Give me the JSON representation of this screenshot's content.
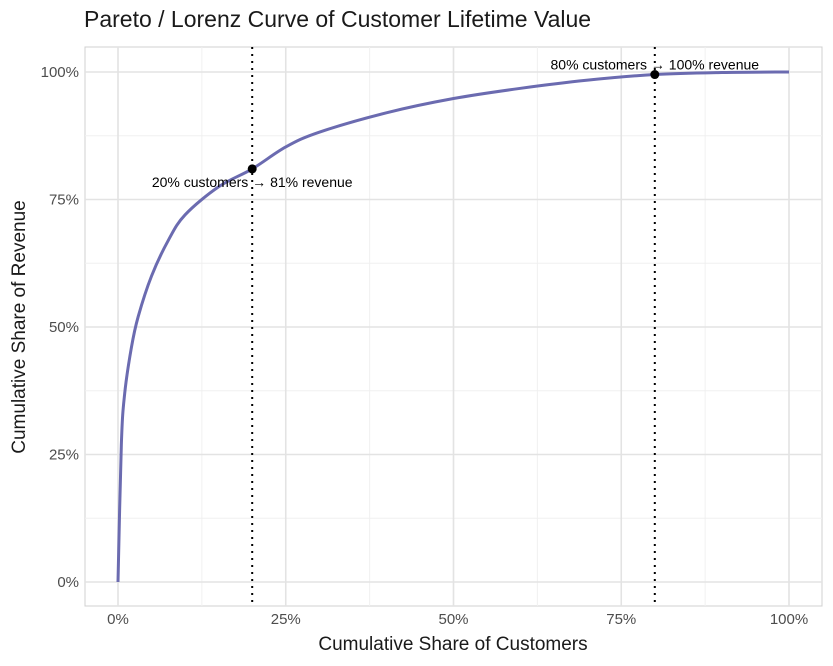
{
  "chart_data": {
    "type": "line",
    "title": "Pareto / Lorenz Curve of Customer Lifetime Value",
    "xlabel": "Cumulative Share of Customers",
    "ylabel": "Cumulative Share of Revenue",
    "xlim": [
      0,
      1
    ],
    "ylim": [
      0,
      1
    ],
    "x_ticks": [
      0,
      0.25,
      0.5,
      0.75,
      1.0
    ],
    "y_ticks": [
      0,
      0.25,
      0.5,
      0.75,
      1.0
    ],
    "x_tick_labels": [
      "0%",
      "25%",
      "50%",
      "75%",
      "100%"
    ],
    "y_tick_labels": [
      "0%",
      "25%",
      "50%",
      "75%",
      "100%"
    ],
    "grid": true,
    "series": [
      {
        "color": "#6b6bb0",
        "x": [
          0.0,
          0.005,
          0.01,
          0.02,
          0.03,
          0.05,
          0.075,
          0.1,
          0.15,
          0.2,
          0.25,
          0.3,
          0.4,
          0.5,
          0.6,
          0.7,
          0.8,
          0.9,
          1.0
        ],
        "y": [
          0.0,
          0.27,
          0.37,
          0.46,
          0.52,
          0.6,
          0.67,
          0.72,
          0.775,
          0.81,
          0.853,
          0.882,
          0.92,
          0.948,
          0.968,
          0.984,
          0.995,
          0.999,
          1.0
        ]
      }
    ],
    "reference_lines": [
      {
        "orientation": "vertical",
        "x": 0.2,
        "style": "dotted",
        "color": "#000000"
      },
      {
        "orientation": "vertical",
        "x": 0.8,
        "style": "dotted",
        "color": "#000000"
      }
    ],
    "points": [
      {
        "x": 0.2,
        "y": 0.81,
        "color": "#000000"
      },
      {
        "x": 0.8,
        "y": 0.995,
        "color": "#000000"
      }
    ],
    "annotations": [
      {
        "text": "20% customers → 81% revenue",
        "x": 0.2,
        "y": 0.81,
        "anchor": "below"
      },
      {
        "text": "80% customers → 100% revenue",
        "x": 0.8,
        "y": 0.995,
        "anchor": "above"
      }
    ]
  }
}
